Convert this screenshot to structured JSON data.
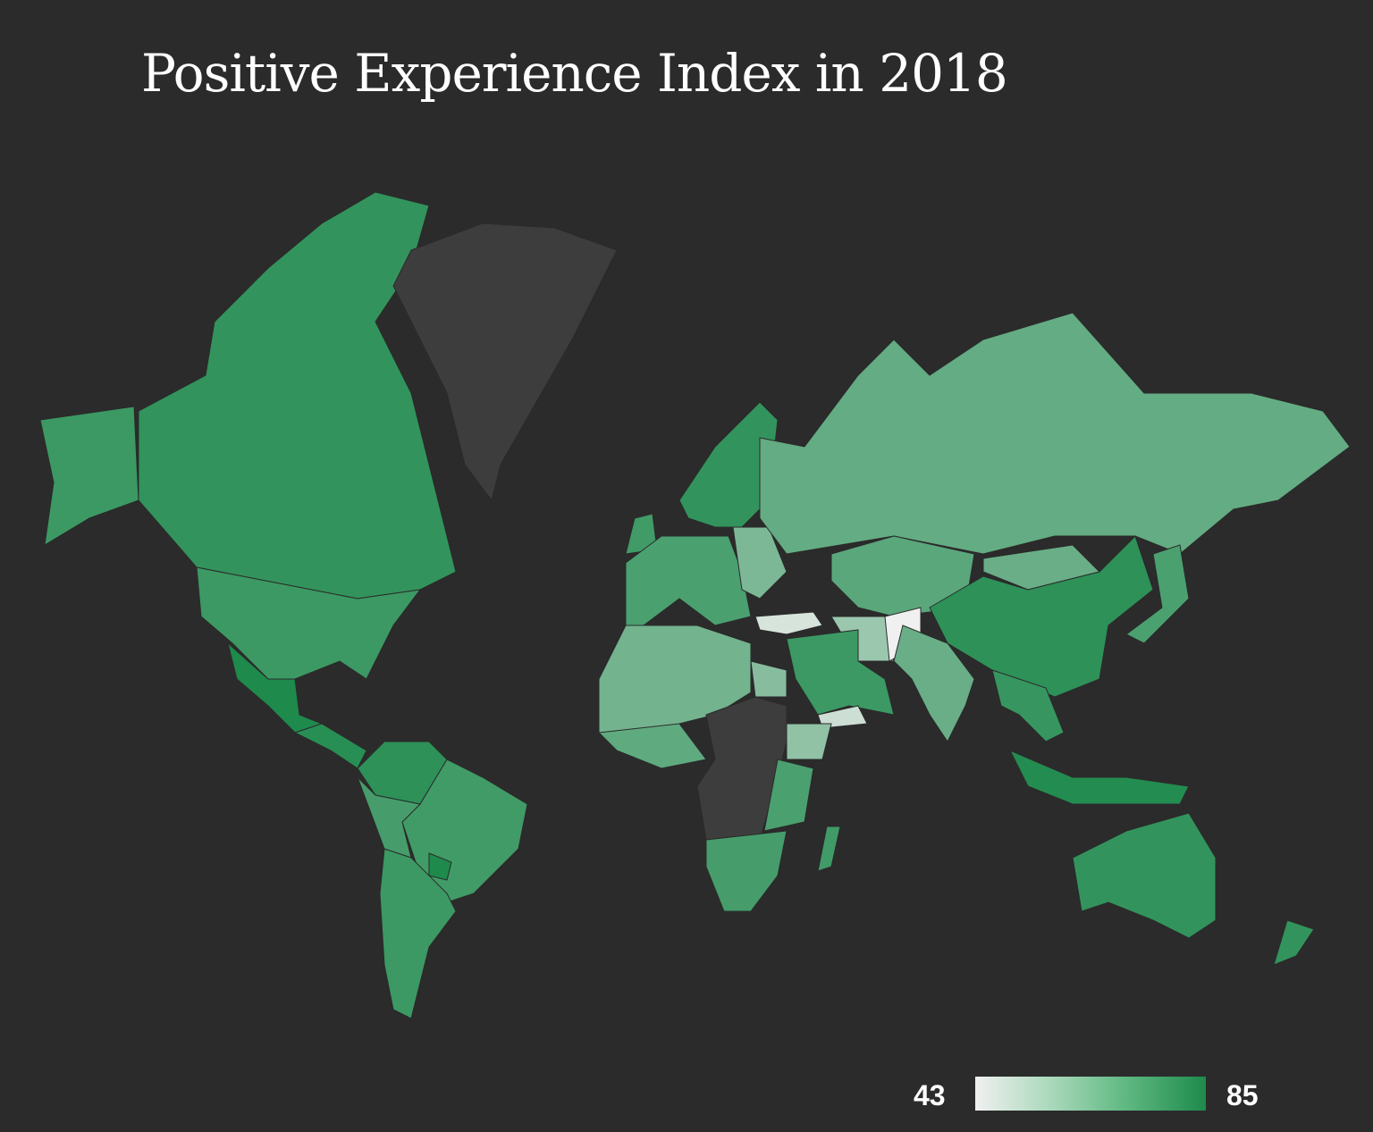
{
  "chart_data": {
    "type": "choropleth",
    "title": "Positive Experience Index in 2018",
    "legend": {
      "min": 43,
      "max": 85,
      "min_label": "43",
      "max_label": "85",
      "min_color": "#f0f0f0",
      "max_color": "#1e8a4c",
      "placement": "bottom-right"
    },
    "no_data_color": "#3d3d3d",
    "regions": [
      {
        "id": "alaska",
        "name": "United States (Alaska)",
        "value": 79
      },
      {
        "id": "canada",
        "name": "Canada",
        "value": 81
      },
      {
        "id": "usa",
        "name": "United States",
        "value": 79
      },
      {
        "id": "mexico",
        "name": "Mexico",
        "value": 85
      },
      {
        "id": "central-america",
        "name": "Central America",
        "value": 83
      },
      {
        "id": "greenland",
        "name": "Greenland",
        "value": null
      },
      {
        "id": "colombia-venezuela",
        "name": "Colombia / Venezuela",
        "value": 82
      },
      {
        "id": "brazil",
        "name": "Brazil",
        "value": 78
      },
      {
        "id": "peru",
        "name": "Peru",
        "value": 77
      },
      {
        "id": "argentina-chile",
        "name": "Argentina / Chile",
        "value": 79
      },
      {
        "id": "paraguay",
        "name": "Paraguay",
        "value": 85
      },
      {
        "id": "uk",
        "name": "United Kingdom",
        "value": 78
      },
      {
        "id": "western-europe",
        "name": "Western Europe",
        "value": 76
      },
      {
        "id": "scandinavia",
        "name": "Scandinavia",
        "value": 81
      },
      {
        "id": "eastern-europe",
        "name": "Eastern Europe",
        "value": 66
      },
      {
        "id": "russia",
        "name": "Russia",
        "value": 71
      },
      {
        "id": "central-asia",
        "name": "Kazakhstan / Central Asia",
        "value": 73
      },
      {
        "id": "mongolia",
        "name": "Mongolia",
        "value": 70
      },
      {
        "id": "china",
        "name": "China",
        "value": 82
      },
      {
        "id": "turkey",
        "name": "Turkey",
        "value": 48
      },
      {
        "id": "iran",
        "name": "Iran",
        "value": 60
      },
      {
        "id": "afghanistan",
        "name": "Afghanistan",
        "value": 43
      },
      {
        "id": "saudi-arabia",
        "name": "Middle East",
        "value": 79
      },
      {
        "id": "yemen",
        "name": "Yemen",
        "value": 50
      },
      {
        "id": "india",
        "name": "India",
        "value": 70
      },
      {
        "id": "southeast-asia",
        "name": "Southeast Asia",
        "value": 80
      },
      {
        "id": "indonesia",
        "name": "Indonesia",
        "value": 84
      },
      {
        "id": "japan",
        "name": "Japan",
        "value": 76
      },
      {
        "id": "north-africa",
        "name": "North Africa",
        "value": 68
      },
      {
        "id": "egypt",
        "name": "Egypt",
        "value": 64
      },
      {
        "id": "west-africa",
        "name": "West Africa",
        "value": 72
      },
      {
        "id": "central-africa",
        "name": "Central Africa",
        "value": null
      },
      {
        "id": "ethiopia",
        "name": "Ethiopia",
        "value": 62
      },
      {
        "id": "east-africa",
        "name": "East Africa",
        "value": 76
      },
      {
        "id": "southern-africa",
        "name": "Southern Africa",
        "value": 77
      },
      {
        "id": "madagascar",
        "name": "Madagascar",
        "value": 78
      },
      {
        "id": "australia",
        "name": "Australia",
        "value": 81
      },
      {
        "id": "new-zealand",
        "name": "New Zealand",
        "value": 81
      }
    ]
  }
}
